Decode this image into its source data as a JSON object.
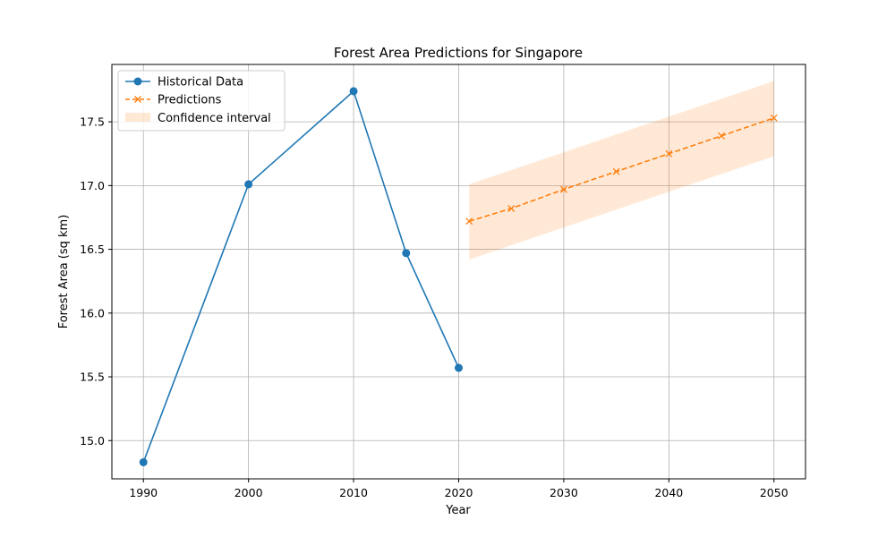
{
  "chart_data": {
    "type": "line",
    "title": "Forest Area Predictions for Singapore",
    "xlabel": "Year",
    "ylabel": "Forest Area (sq km)",
    "xlim": [
      1987,
      2053
    ],
    "ylim": [
      14.7,
      17.95
    ],
    "xticks": [
      1990,
      2000,
      2010,
      2020,
      2030,
      2040,
      2050
    ],
    "yticks": [
      15.0,
      15.5,
      16.0,
      16.5,
      17.0,
      17.5
    ],
    "grid": true,
    "legend_position": "upper-left",
    "series": [
      {
        "name": "Historical Data",
        "style": "solid-circle",
        "color": "#1f77b4",
        "x": [
          1990,
          2000,
          2010,
          2015,
          2020
        ],
        "y": [
          14.83,
          17.01,
          17.74,
          16.47,
          15.57
        ]
      },
      {
        "name": "Predictions",
        "style": "dashed-x",
        "color": "#ff7f0e",
        "x": [
          2021,
          2025,
          2030,
          2035,
          2040,
          2045,
          2050
        ],
        "y": [
          16.72,
          16.82,
          16.97,
          17.11,
          17.25,
          17.39,
          17.53
        ]
      }
    ],
    "confidence_interval": {
      "name": "Confidence interval",
      "color": "#ff7f0e",
      "x": [
        2021,
        2050
      ],
      "lower": [
        16.42,
        17.23
      ],
      "upper": [
        17.01,
        17.82
      ]
    }
  }
}
